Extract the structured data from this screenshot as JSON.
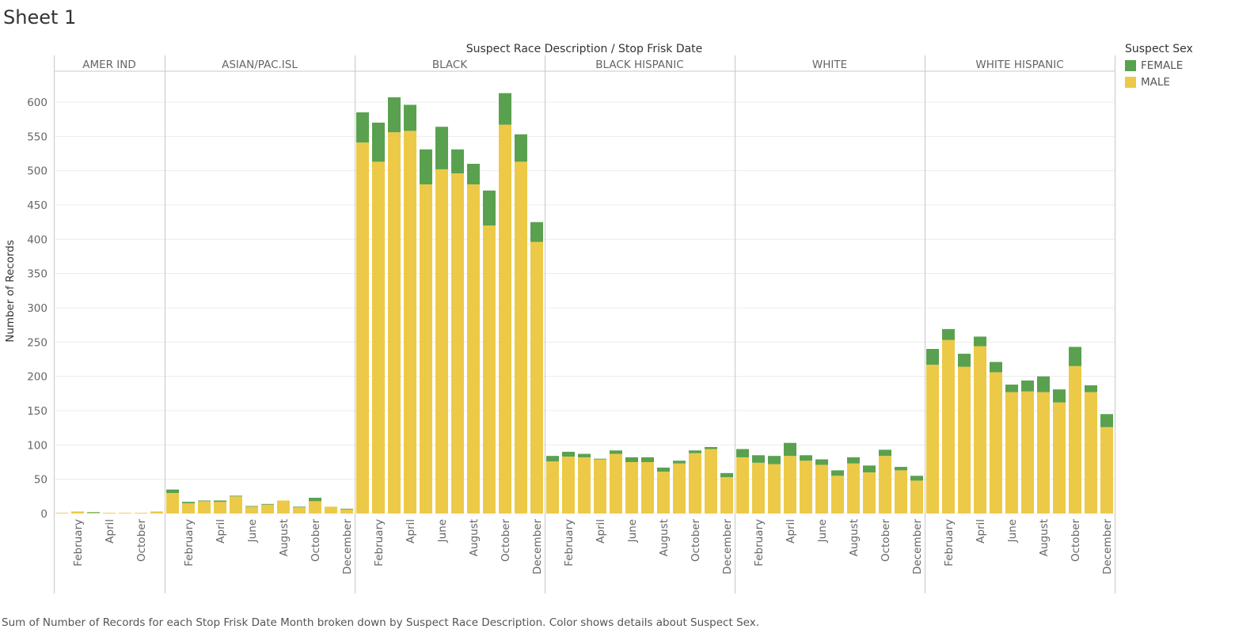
{
  "sheet": {
    "title": "Sheet 1"
  },
  "caption": "Sum of Number of Records for each Stop Frisk Date Month broken down by Suspect Race Description.  Color shows details about Suspect Sex.",
  "colors": {
    "female": "#59a14f",
    "male": "#edc948",
    "grid": "#ececec",
    "divider": "#c8c8c8",
    "axis_text": "#666666"
  },
  "chart_data": {
    "type": "bar",
    "stacked": true,
    "title": "Suspect Race Description  /  Stop Frisk Date",
    "ylabel": "Number of Records",
    "ylim": [
      -10,
      640
    ],
    "yticks": [
      0,
      50,
      100,
      150,
      200,
      250,
      300,
      350,
      400,
      450,
      500,
      550,
      600
    ],
    "legend": {
      "title": "Suspect Sex",
      "position": "top-right",
      "items": [
        {
          "label": "FEMALE",
          "color": "#59a14f"
        },
        {
          "label": "MALE",
          "color": "#edc948"
        }
      ]
    },
    "panels": [
      {
        "name": "AMER IND",
        "tick_labels": [
          "February",
          "April",
          "October"
        ],
        "tick_at": [
          1,
          3,
          5
        ],
        "female": [
          0,
          0,
          1,
          0,
          0,
          0,
          0
        ],
        "male": [
          1,
          3,
          1,
          1,
          1,
          1,
          3
        ]
      },
      {
        "name": "ASIAN/PAC.ISL",
        "tick_labels": [
          "February",
          "April",
          "June",
          "August",
          "October",
          "December"
        ],
        "tick_at": [
          1,
          3,
          5,
          7,
          9,
          11
        ],
        "female": [
          5,
          2,
          1,
          2,
          1,
          1,
          1,
          0,
          1,
          5,
          0,
          1
        ],
        "male": [
          30,
          15,
          18,
          17,
          25,
          10,
          13,
          19,
          9,
          18,
          10,
          6
        ]
      },
      {
        "name": "BLACK",
        "tick_labels": [
          "February",
          "April",
          "June",
          "August",
          "October",
          "December"
        ],
        "tick_at": [
          1,
          3,
          5,
          7,
          9,
          11
        ],
        "female": [
          44,
          57,
          51,
          38,
          51,
          62,
          35,
          30,
          51,
          46,
          40,
          29
        ],
        "male": [
          541,
          513,
          556,
          558,
          480,
          502,
          496,
          480,
          420,
          567,
          513,
          396
        ]
      },
      {
        "name": "BLACK HISPANIC",
        "tick_labels": [
          "February",
          "April",
          "June",
          "August",
          "October",
          "December"
        ],
        "tick_at": [
          1,
          3,
          5,
          7,
          9,
          11
        ],
        "female": [
          8,
          7,
          5,
          1,
          5,
          7,
          7,
          6,
          4,
          4,
          3,
          6
        ],
        "male": [
          76,
          83,
          82,
          79,
          87,
          75,
          75,
          61,
          73,
          88,
          94,
          53
        ]
      },
      {
        "name": "WHITE",
        "tick_labels": [
          "February",
          "April",
          "June",
          "August",
          "October",
          "December"
        ],
        "tick_at": [
          1,
          3,
          5,
          7,
          9,
          11
        ],
        "female": [
          12,
          11,
          12,
          19,
          8,
          8,
          8,
          9,
          10,
          9,
          5,
          7
        ],
        "male": [
          82,
          74,
          72,
          84,
          77,
          71,
          55,
          73,
          60,
          84,
          63,
          48
        ]
      },
      {
        "name": "WHITE HISPANIC",
        "tick_labels": [
          "February",
          "April",
          "June",
          "August",
          "October",
          "December"
        ],
        "tick_at": [
          1,
          3,
          5,
          7,
          9,
          11
        ],
        "female": [
          23,
          16,
          19,
          14,
          15,
          11,
          16,
          23,
          19,
          28,
          10,
          19
        ],
        "male": [
          217,
          253,
          214,
          244,
          206,
          177,
          178,
          177,
          162,
          215,
          177,
          126
        ]
      }
    ]
  }
}
